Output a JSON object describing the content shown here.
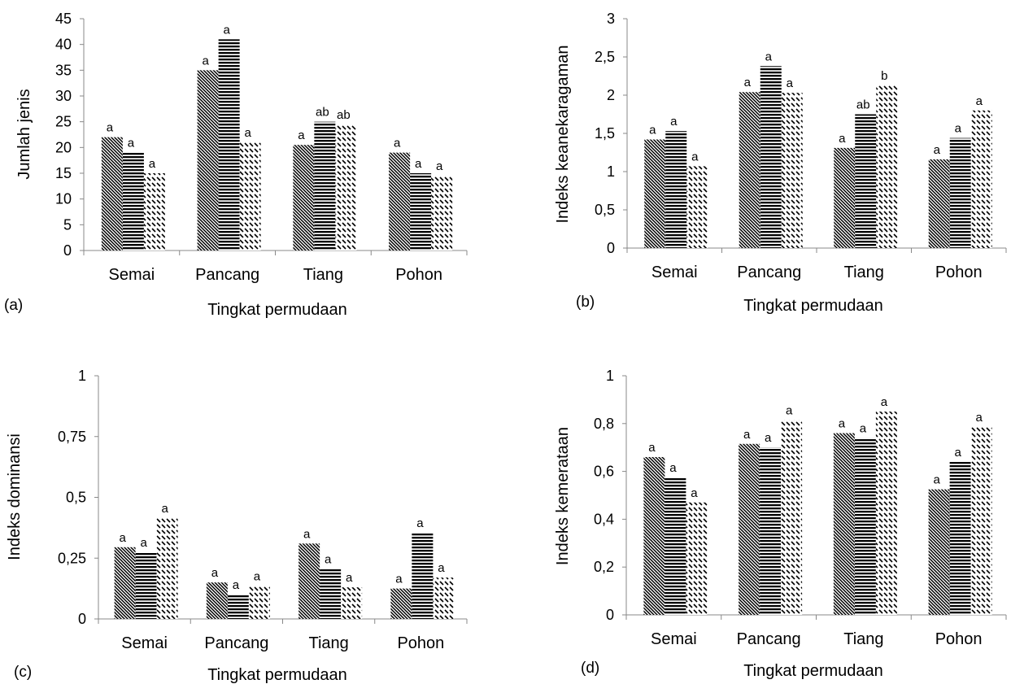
{
  "chart_data": [
    {
      "panel_label": "(a)",
      "type": "bar",
      "ylabel": "Jumlah jenis",
      "xlabel": "Tingkat permudaan",
      "ylim": [
        0,
        45
      ],
      "yticks": [
        "0",
        "5",
        "10",
        "15",
        "20",
        "25",
        "30",
        "35",
        "40",
        "45"
      ],
      "categories": [
        "Semai",
        "Pancang",
        "Tiang",
        "Pohon"
      ],
      "series": [
        {
          "pattern": "diagonal",
          "values": [
            22,
            35,
            20.5,
            19
          ],
          "letters": [
            "a",
            "a",
            "a",
            "a"
          ]
        },
        {
          "pattern": "horizontal",
          "values": [
            19,
            41,
            25,
            15
          ],
          "letters": [
            "a",
            "a",
            "ab",
            "a"
          ]
        },
        {
          "pattern": "dashed",
          "values": [
            15,
            21,
            24.5,
            14.5
          ],
          "letters": [
            "a",
            "a",
            "ab",
            "a"
          ]
        }
      ]
    },
    {
      "panel_label": "(b)",
      "type": "bar",
      "ylabel": "Indeks keanekaragaman",
      "xlabel": "Tingkat permudaan",
      "ylim": [
        0,
        3
      ],
      "yticks": [
        "0",
        "0,5",
        "1",
        "1,5",
        "2",
        "2,5",
        "3"
      ],
      "categories": [
        "Semai",
        "Pancang",
        "Tiang",
        "Pohon"
      ],
      "series": [
        {
          "pattern": "diagonal",
          "values": [
            1.42,
            2.04,
            1.31,
            1.16
          ],
          "letters": [
            "a",
            "a",
            "a",
            "a"
          ]
        },
        {
          "pattern": "horizontal",
          "values": [
            1.53,
            2.38,
            1.75,
            1.44
          ],
          "letters": [
            "a",
            "a",
            "ab",
            "a"
          ]
        },
        {
          "pattern": "dashed",
          "values": [
            1.07,
            2.03,
            2.13,
            1.8
          ],
          "letters": [
            "a",
            "a",
            "b",
            "a"
          ]
        }
      ]
    },
    {
      "panel_label": "(c)",
      "type": "bar",
      "ylabel": "Indeks dominansi",
      "xlabel": "Tingkat permudaan",
      "ylim": [
        0,
        1
      ],
      "yticks": [
        "0",
        "0,25",
        "0,5",
        "0,75",
        "1"
      ],
      "categories": [
        "Semai",
        "Pancang",
        "Tiang",
        "Pohon"
      ],
      "series": [
        {
          "pattern": "diagonal",
          "values": [
            0.295,
            0.15,
            0.31,
            0.125
          ],
          "letters": [
            "a",
            "a",
            "a",
            "a"
          ]
        },
        {
          "pattern": "horizontal",
          "values": [
            0.275,
            0.1,
            0.205,
            0.355
          ],
          "letters": [
            "a",
            "a",
            "a",
            "a"
          ]
        },
        {
          "pattern": "dashed",
          "values": [
            0.415,
            0.135,
            0.13,
            0.17
          ],
          "letters": [
            "a",
            "a",
            "a",
            "a"
          ]
        }
      ]
    },
    {
      "panel_label": "(d)",
      "type": "bar",
      "ylabel": "Indeks kemerataan",
      "xlabel": "Tingkat permudaan",
      "ylim": [
        0,
        1
      ],
      "yticks": [
        "0",
        "0,2",
        "0,4",
        "0,6",
        "0,8",
        "1"
      ],
      "categories": [
        "Semai",
        "Pancang",
        "Tiang",
        "Pohon"
      ],
      "series": [
        {
          "pattern": "diagonal",
          "values": [
            0.66,
            0.715,
            0.76,
            0.525
          ],
          "letters": [
            "a",
            "a",
            "a",
            "a"
          ]
        },
        {
          "pattern": "horizontal",
          "values": [
            0.575,
            0.7,
            0.74,
            0.64
          ],
          "letters": [
            "a",
            "a",
            "a",
            "a"
          ]
        },
        {
          "pattern": "dashed",
          "values": [
            0.47,
            0.815,
            0.85,
            0.785
          ],
          "letters": [
            "a",
            "a",
            "a",
            "a"
          ]
        }
      ]
    }
  ]
}
